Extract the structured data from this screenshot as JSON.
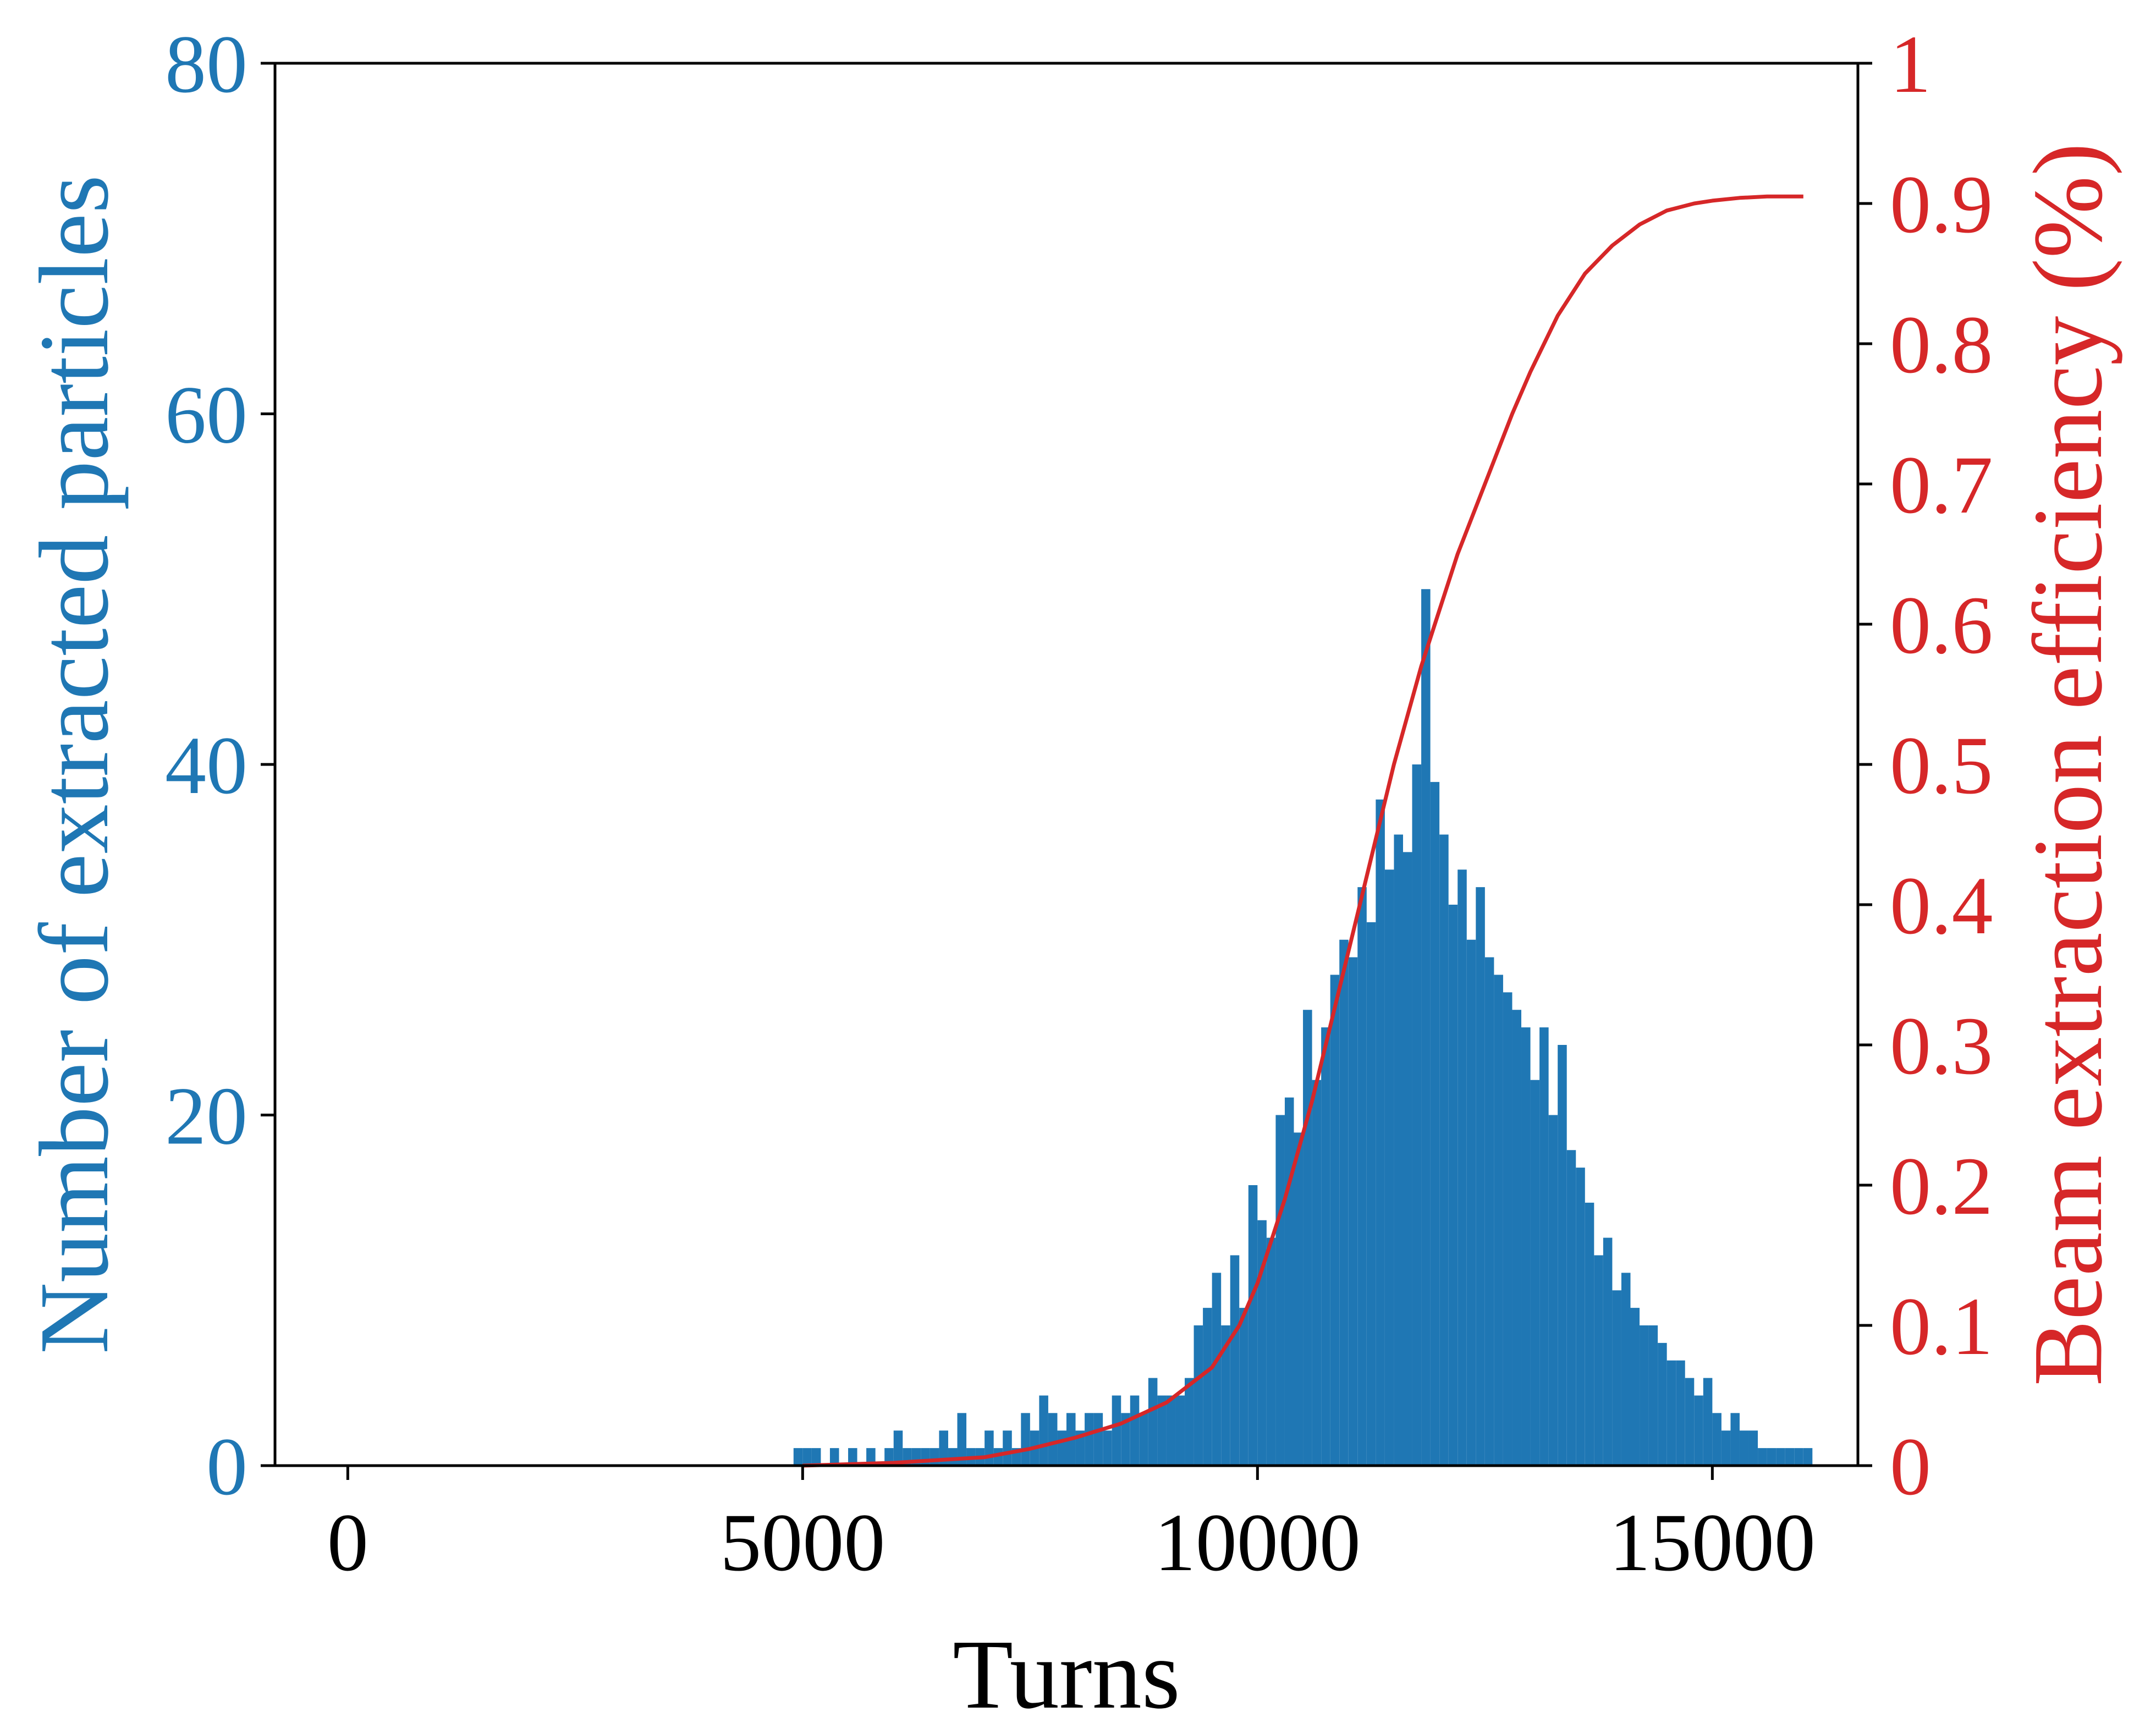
{
  "chart_data": {
    "type": "histogram",
    "xlabel": "Turns",
    "ylabel_left": "Number of extracted particles",
    "ylabel_right": "Beam extraction efficiency (%)",
    "xlim": [
      -800,
      16600
    ],
    "ylim_left": [
      0,
      80
    ],
    "ylim_right": [
      0,
      1
    ],
    "xticks": [
      0,
      5000,
      10000,
      15000
    ],
    "xtick_labels": [
      "0",
      "5000",
      "10000",
      "15000"
    ],
    "yticks_left": [
      0,
      20,
      40,
      60,
      80
    ],
    "ytick_labels_left": [
      "0",
      "20",
      "40",
      "60",
      "80"
    ],
    "yticks_right": [
      0,
      0.1,
      0.2,
      0.3,
      0.4,
      0.5,
      0.6,
      0.7,
      0.8,
      0.9,
      1
    ],
    "ytick_labels_right": [
      "0",
      "0.1",
      "0.2",
      "0.3",
      "0.4",
      "0.5",
      "0.6",
      "0.7",
      "0.8",
      "0.9",
      "1"
    ],
    "colors": {
      "histogram": "#1f77b4",
      "efficiency": "#d62728",
      "axis": "#000000"
    },
    "grid": false,
    "histogram": {
      "name": "Number of extracted particles",
      "bins": [
        [
          4900,
          5000,
          1
        ],
        [
          5000,
          5100,
          1
        ],
        [
          5100,
          5200,
          1
        ],
        [
          5300,
          5400,
          1
        ],
        [
          5500,
          5600,
          1
        ],
        [
          5700,
          5800,
          1
        ],
        [
          5900,
          6000,
          1
        ],
        [
          6000,
          6100,
          2
        ],
        [
          6100,
          6200,
          1
        ],
        [
          6200,
          6300,
          1
        ],
        [
          6300,
          6400,
          1
        ],
        [
          6400,
          6500,
          1
        ],
        [
          6500,
          6600,
          2
        ],
        [
          6600,
          6700,
          1
        ],
        [
          6700,
          6800,
          3
        ],
        [
          6800,
          6900,
          1
        ],
        [
          6900,
          7000,
          1
        ],
        [
          7000,
          7100,
          2
        ],
        [
          7100,
          7200,
          1
        ],
        [
          7200,
          7300,
          2
        ],
        [
          7300,
          7400,
          1
        ],
        [
          7400,
          7500,
          3
        ],
        [
          7500,
          7600,
          2
        ],
        [
          7600,
          7700,
          4
        ],
        [
          7700,
          7800,
          3
        ],
        [
          7800,
          7900,
          2
        ],
        [
          7900,
          8000,
          3
        ],
        [
          8000,
          8100,
          2
        ],
        [
          8100,
          8200,
          3
        ],
        [
          8200,
          8300,
          3
        ],
        [
          8300,
          8400,
          2
        ],
        [
          8400,
          8500,
          4
        ],
        [
          8500,
          8600,
          3
        ],
        [
          8600,
          8700,
          4
        ],
        [
          8700,
          8800,
          3
        ],
        [
          8800,
          8900,
          5
        ],
        [
          8900,
          9000,
          4
        ],
        [
          9000,
          9100,
          4
        ],
        [
          9100,
          9200,
          4
        ],
        [
          9200,
          9300,
          5
        ],
        [
          9300,
          9400,
          8
        ],
        [
          9400,
          9500,
          9
        ],
        [
          9500,
          9600,
          11
        ],
        [
          9600,
          9700,
          8
        ],
        [
          9700,
          9800,
          12
        ],
        [
          9800,
          9900,
          9
        ],
        [
          9900,
          10000,
          16
        ],
        [
          10000,
          10100,
          14
        ],
        [
          10100,
          10200,
          13
        ],
        [
          10200,
          10300,
          20
        ],
        [
          10300,
          10400,
          21
        ],
        [
          10400,
          10500,
          19
        ],
        [
          10500,
          10600,
          26
        ],
        [
          10600,
          10700,
          22
        ],
        [
          10700,
          10800,
          25
        ],
        [
          10800,
          10900,
          28
        ],
        [
          10900,
          11000,
          30
        ],
        [
          11000,
          11100,
          29
        ],
        [
          11100,
          11200,
          33
        ],
        [
          11200,
          11300,
          31
        ],
        [
          11300,
          11400,
          38
        ],
        [
          11400,
          11500,
          34
        ],
        [
          11500,
          11600,
          36
        ],
        [
          11600,
          11700,
          35
        ],
        [
          11700,
          11800,
          40
        ],
        [
          11800,
          11900,
          50
        ],
        [
          11900,
          12000,
          39
        ],
        [
          12000,
          12100,
          36
        ],
        [
          12100,
          12200,
          32
        ],
        [
          12200,
          12300,
          34
        ],
        [
          12300,
          12400,
          30
        ],
        [
          12400,
          12500,
          33
        ],
        [
          12500,
          12600,
          29
        ],
        [
          12600,
          12700,
          28
        ],
        [
          12700,
          12800,
          27
        ],
        [
          12800,
          12900,
          26
        ],
        [
          12900,
          13000,
          25
        ],
        [
          13000,
          13100,
          22
        ],
        [
          13100,
          13200,
          25
        ],
        [
          13200,
          13300,
          20
        ],
        [
          13300,
          13400,
          24
        ],
        [
          13400,
          13500,
          18
        ],
        [
          13500,
          13600,
          17
        ],
        [
          13600,
          13700,
          15
        ],
        [
          13700,
          13800,
          12
        ],
        [
          13800,
          13900,
          13
        ],
        [
          13900,
          14000,
          10
        ],
        [
          14000,
          14100,
          11
        ],
        [
          14100,
          14200,
          9
        ],
        [
          14200,
          14300,
          8
        ],
        [
          14300,
          14400,
          8
        ],
        [
          14400,
          14500,
          7
        ],
        [
          14500,
          14600,
          6
        ],
        [
          14600,
          14700,
          6
        ],
        [
          14700,
          14800,
          5
        ],
        [
          14800,
          14900,
          4
        ],
        [
          14900,
          15000,
          5
        ],
        [
          15000,
          15100,
          3
        ],
        [
          15100,
          15200,
          2
        ],
        [
          15200,
          15300,
          3
        ],
        [
          15300,
          15400,
          2
        ],
        [
          15400,
          15500,
          2
        ],
        [
          15500,
          15600,
          1
        ],
        [
          15600,
          15700,
          1
        ],
        [
          15700,
          15800,
          1
        ],
        [
          15800,
          15900,
          1
        ],
        [
          15900,
          16000,
          1
        ],
        [
          16000,
          16100,
          1
        ]
      ]
    },
    "efficiency": {
      "name": "Beam extraction efficiency (%)",
      "x": [
        5000,
        6000,
        7000,
        7500,
        8000,
        8500,
        9000,
        9500,
        9800,
        10000,
        10300,
        10600,
        10900,
        11200,
        11500,
        11800,
        12000,
        12200,
        12500,
        12800,
        13000,
        13300,
        13600,
        13900,
        14200,
        14500,
        14800,
        15000,
        15300,
        15600,
        16000
      ],
      "y": [
        0.0,
        0.002,
        0.006,
        0.012,
        0.02,
        0.03,
        0.045,
        0.07,
        0.1,
        0.13,
        0.19,
        0.26,
        0.34,
        0.42,
        0.5,
        0.57,
        0.61,
        0.65,
        0.7,
        0.75,
        0.78,
        0.82,
        0.85,
        0.87,
        0.885,
        0.895,
        0.9,
        0.902,
        0.904,
        0.905,
        0.905
      ]
    }
  }
}
